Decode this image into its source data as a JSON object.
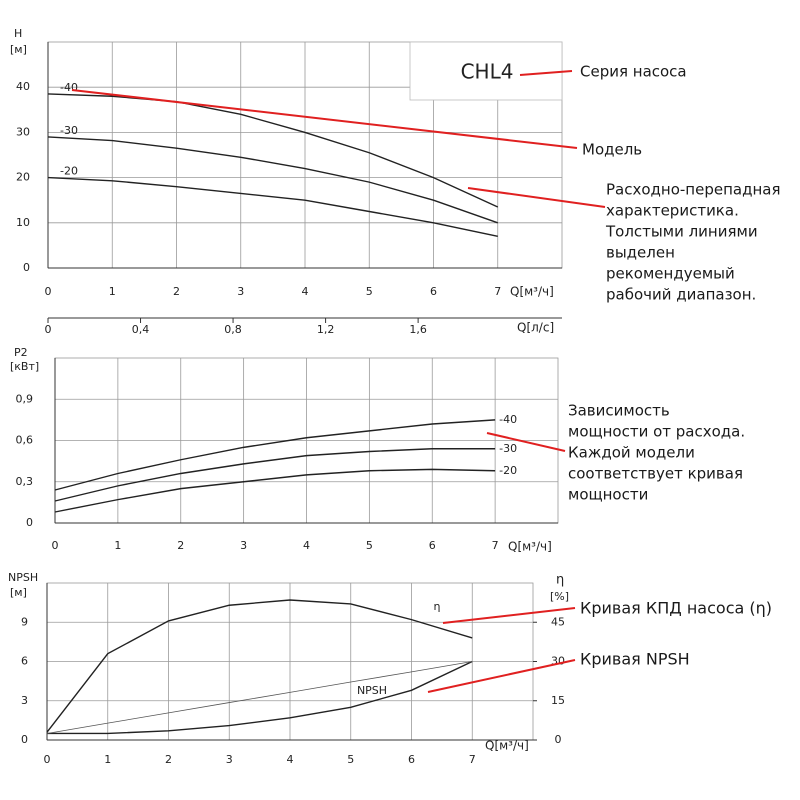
{
  "chart_data": [
    {
      "type": "line",
      "title": "CHL4",
      "ylabel": "H",
      "yunit": "[м]",
      "xlabel": "Q[м³/ч]",
      "x": [
        0,
        1,
        2,
        3,
        4,
        5,
        6,
        7
      ],
      "xlim": [
        0,
        8
      ],
      "xticks": [
        0,
        1,
        2,
        3,
        4,
        5,
        6,
        7
      ],
      "ylim": [
        0,
        50
      ],
      "yticks": [
        0,
        10,
        20,
        30,
        40
      ],
      "grid": true,
      "x2label": "Q[л/с]",
      "x2lim": [
        0,
        2.222
      ],
      "x2ticks": [
        0,
        {
          "value": 0.4,
          "label": "0,4"
        },
        {
          "value": 0.8,
          "label": "0,8"
        },
        {
          "value": 1.2,
          "label": "1,2"
        },
        {
          "value": 1.6,
          "label": "1,6"
        }
      ],
      "series": [
        {
          "name": "-40",
          "color": "#222222",
          "values": [
            38.5,
            38,
            36.8,
            34,
            30,
            25.5,
            20,
            13.5
          ]
        },
        {
          "name": "-30",
          "color": "#222222",
          "values": [
            29,
            28.2,
            26.5,
            24.5,
            22,
            19,
            15,
            10
          ]
        },
        {
          "name": "-20",
          "color": "#222222",
          "values": [
            20,
            19.3,
            18,
            16.5,
            15,
            12.5,
            10,
            7
          ]
        }
      ],
      "annotations": [
        {
          "lines": [
            "Серия насоса"
          ]
        },
        {
          "lines": [
            "Модель"
          ]
        },
        {
          "lines": [
            "Расходно-перепадная",
            "характеристика.",
            "Толстыми линиями",
            "выделен",
            "рекомендуемый",
            "рабочий диапазон."
          ]
        }
      ]
    },
    {
      "type": "line",
      "ylabel": "P2",
      "yunit": "[кВт]",
      "xlabel": "Q[м³/ч]",
      "x": [
        0,
        1,
        2,
        3,
        4,
        5,
        6,
        7
      ],
      "xlim": [
        0,
        8
      ],
      "xticks": [
        0,
        1,
        2,
        3,
        4,
        5,
        6,
        7
      ],
      "ylim": [
        0,
        1.2
      ],
      "yticks": [
        0,
        {
          "value": 0.3,
          "label": "0,3"
        },
        {
          "value": 0.6,
          "label": "0,6"
        },
        {
          "value": 0.9,
          "label": "0,9"
        }
      ],
      "grid": true,
      "series": [
        {
          "name": "-40",
          "color": "#222222",
          "values": [
            0.24,
            0.36,
            0.46,
            0.55,
            0.62,
            0.67,
            0.72,
            0.75
          ]
        },
        {
          "name": "-30",
          "color": "#222222",
          "values": [
            0.16,
            0.27,
            0.36,
            0.43,
            0.49,
            0.52,
            0.54,
            0.54
          ]
        },
        {
          "name": "-20",
          "color": "#222222",
          "values": [
            0.08,
            0.17,
            0.25,
            0.3,
            0.35,
            0.38,
            0.39,
            0.38
          ]
        }
      ],
      "annotations": [
        {
          "lines": [
            "Зависимость",
            "мощности от расхода.",
            "Каждой модели",
            "соответствует кривая",
            "мощности"
          ]
        }
      ]
    },
    {
      "type": "line",
      "ylabel": "NPSH",
      "yunit": "[м]",
      "y2label": "η",
      "y2unit": "[%]",
      "xlabel": "Q[м³/ч]",
      "x": [
        0,
        1,
        2,
        3,
        4,
        5,
        6,
        7
      ],
      "xlim": [
        0,
        8
      ],
      "xticks": [
        0,
        1,
        2,
        3,
        4,
        5,
        6,
        7
      ],
      "ylim": [
        0,
        12
      ],
      "yticks": [
        0,
        3,
        6,
        9
      ],
      "y2lim": [
        0,
        60
      ],
      "y2ticks": [
        0,
        15,
        30,
        45
      ],
      "grid": true,
      "series": [
        {
          "name": "η",
          "color": "#222222",
          "axis": "y2",
          "values": [
            3,
            33,
            45.5,
            51.5,
            53.5,
            52,
            46,
            39
          ]
        },
        {
          "name": "NPSH",
          "color": "#222222",
          "values": [
            0.5,
            0.5,
            0.7,
            1.1,
            1.7,
            2.5,
            3.8,
            6
          ]
        },
        {
          "color": "#555555",
          "values": [
            0.5,
            1.29,
            2.07,
            2.86,
            3.64,
            4.43,
            5.21,
            6
          ]
        }
      ],
      "annotations": [
        {
          "lines": [
            "Кривая КПД насоса (η)"
          ]
        },
        {
          "lines": [
            "Кривая NPSH"
          ]
        }
      ]
    }
  ]
}
